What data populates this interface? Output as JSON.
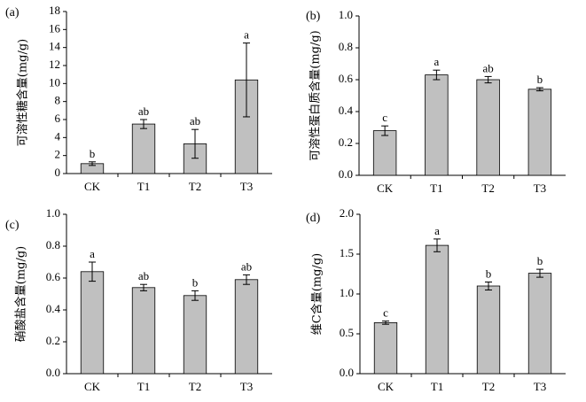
{
  "chart_data": [
    {
      "type": "bar",
      "panel_label": "(a)",
      "ylabel": "可溶性糖含量(mg/g)",
      "categories": [
        "CK",
        "T1",
        "T2",
        "T3"
      ],
      "values": [
        1.1,
        5.5,
        3.3,
        10.4
      ],
      "errors": [
        0.2,
        0.5,
        1.6,
        4.1
      ],
      "letters": [
        "b",
        "ab",
        "ab",
        "a"
      ],
      "ylim": [
        0,
        18
      ],
      "yticks": [
        0,
        2,
        4,
        6,
        8,
        10,
        12,
        14,
        16,
        18
      ],
      "ytick_labels": [
        "0",
        "2",
        "4",
        "6",
        "8",
        "10",
        "12",
        "14",
        "16",
        "18"
      ]
    },
    {
      "type": "bar",
      "panel_label": "(b)",
      "ylabel": "可溶性蛋白质含量(mg/g)",
      "categories": [
        "CK",
        "T1",
        "T2",
        "T3"
      ],
      "values": [
        0.28,
        0.63,
        0.6,
        0.54
      ],
      "errors": [
        0.03,
        0.03,
        0.02,
        0.01
      ],
      "letters": [
        "c",
        "a",
        "ab",
        "b"
      ],
      "ylim": [
        0,
        1.0
      ],
      "yticks": [
        0,
        0.2,
        0.4,
        0.6,
        0.8,
        1.0
      ],
      "ytick_labels": [
        "0.0",
        "0.2",
        "0.4",
        "0.6",
        "0.8",
        "1.0"
      ]
    },
    {
      "type": "bar",
      "panel_label": "(c)",
      "ylabel": "硝酸盐含量(mg/g)",
      "categories": [
        "CK",
        "T1",
        "T2",
        "T3"
      ],
      "values": [
        0.64,
        0.54,
        0.49,
        0.59
      ],
      "errors": [
        0.06,
        0.02,
        0.03,
        0.03
      ],
      "letters": [
        "a",
        "ab",
        "b",
        "ab"
      ],
      "ylim": [
        0,
        1.0
      ],
      "yticks": [
        0,
        0.2,
        0.4,
        0.6,
        0.8,
        1.0
      ],
      "ytick_labels": [
        "0.0",
        "0.2",
        "0.4",
        "0.6",
        "0.8",
        "1.0"
      ]
    },
    {
      "type": "bar",
      "panel_label": "(d)",
      "ylabel": "维C含量(mg/g)",
      "categories": [
        "CK",
        "T1",
        "T2",
        "T3"
      ],
      "values": [
        0.64,
        1.61,
        1.1,
        1.26
      ],
      "errors": [
        0.02,
        0.08,
        0.05,
        0.05
      ],
      "letters": [
        "c",
        "a",
        "b",
        "b"
      ],
      "ylim": [
        0,
        2.0
      ],
      "yticks": [
        0,
        0.5,
        1.0,
        1.5,
        2.0
      ],
      "ytick_labels": [
        "0.0",
        "0.5",
        "1.0",
        "1.5",
        "2.0"
      ]
    }
  ]
}
